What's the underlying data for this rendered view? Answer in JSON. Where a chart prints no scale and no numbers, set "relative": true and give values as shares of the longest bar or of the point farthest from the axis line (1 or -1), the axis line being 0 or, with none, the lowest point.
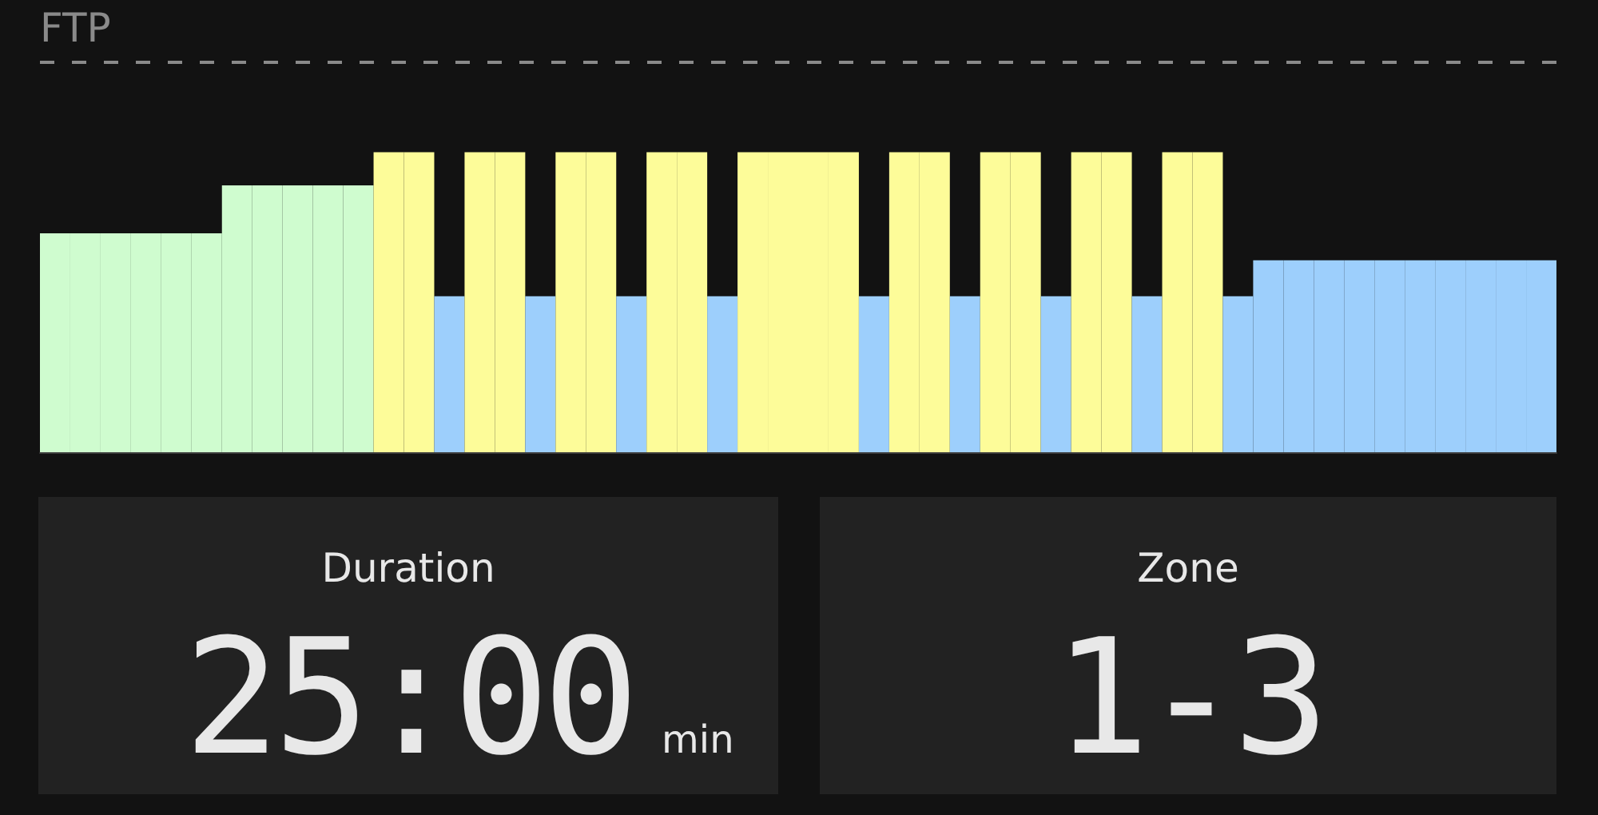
{
  "chart_data": [
    {
      "type": "bar",
      "relative": true,
      "categories": [
        null,
        null,
        null,
        null,
        null,
        null,
        null,
        null,
        null,
        null,
        null,
        null,
        null,
        null,
        null,
        null,
        null,
        null,
        null,
        null,
        null,
        null,
        null,
        null,
        null,
        null,
        null,
        null,
        null,
        null,
        null,
        null,
        null,
        null,
        null,
        null,
        null,
        null,
        null,
        null,
        null,
        null,
        null,
        null,
        null,
        null,
        null,
        null,
        null,
        null
      ],
      "values": [
        0.73,
        0.73,
        0.73,
        0.73,
        0.73,
        0.73,
        0.89,
        0.89,
        0.89,
        0.89,
        0.89,
        1,
        1,
        0.52,
        1,
        1,
        0.52,
        1,
        1,
        0.52,
        1,
        1,
        0.52,
        1,
        1,
        1,
        1,
        0.52,
        1,
        1,
        0.52,
        1,
        1,
        0.52,
        1,
        1,
        0.52,
        1,
        1,
        0.52,
        0.64,
        0.64,
        0.64,
        0.64,
        0.64,
        0.64,
        0.64,
        0.64,
        0.64,
        0.64
      ],
      "colors": [
        "#cffccf",
        "#cffccf",
        "#cffccf",
        "#cffccf",
        "#cffccf",
        "#cffccf",
        "#cffccf",
        "#cffccf",
        "#cffccf",
        "#cffccf",
        "#cffccf",
        "#fdfc99",
        "#fdfc99",
        "#9dcffc",
        "#fdfc99",
        "#fdfc99",
        "#9dcffc",
        "#fdfc99",
        "#fdfc99",
        "#9dcffc",
        "#fdfc99",
        "#fdfc99",
        "#9dcffc",
        "#fdfc99",
        "#fdfc99",
        "#fdfc99",
        "#fdfc99",
        "#9dcffc",
        "#fdfc99",
        "#fdfc99",
        "#9dcffc",
        "#fdfc99",
        "#fdfc99",
        "#9dcffc",
        "#fdfc99",
        "#fdfc99",
        "#9dcffc",
        "#fdfc99",
        "#fdfc99",
        "#9dcffc",
        "#9dcffc",
        "#9dcffc",
        "#9dcffc",
        "#9dcffc",
        "#9dcffc",
        "#9dcffc",
        "#9dcffc",
        "#9dcffc",
        "#9dcffc",
        "#9dcffc"
      ],
      "ref_lines": [
        {
          "axis": "y",
          "value": 1.3,
          "label": "FTP",
          "color": "#8a8a8a",
          "line_style": "dashed"
        }
      ]
    },
    {
      "type": "other",
      "title": "Duration",
      "annotations": [
        "25:00",
        "min"
      ]
    },
    {
      "type": "other",
      "title": "Zone",
      "annotations": [
        "1-3"
      ]
    }
  ]
}
